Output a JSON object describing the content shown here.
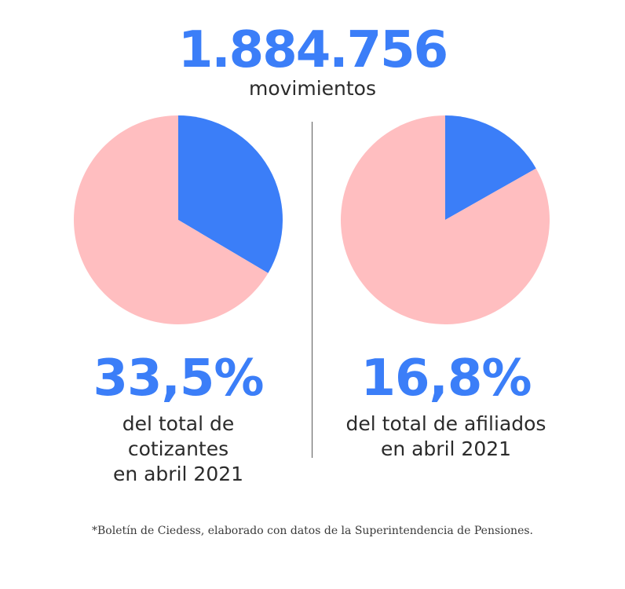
{
  "header": {
    "total": "1.884.756",
    "total_label": "movimientos"
  },
  "colors": {
    "highlight": "#3b7ef8",
    "remainder": "#ffbec0",
    "text": "#2b2b2b"
  },
  "chart_data": [
    {
      "type": "pie",
      "labels": [
        "",
        ""
      ],
      "values": [
        33.5,
        66.5
      ],
      "value_label": "33,5%",
      "caption_lines": [
        "del total de",
        "cotizantes",
        "en abril 2021"
      ]
    },
    {
      "type": "pie",
      "labels": [
        "",
        ""
      ],
      "values": [
        16.8,
        83.2
      ],
      "value_label": "16,8%",
      "caption_lines": [
        "del total de afiliados",
        "en abril 2021"
      ]
    }
  ],
  "footnote": "*Boletín de Ciedess, elaborado con datos de la Superintendencia de Pensiones."
}
